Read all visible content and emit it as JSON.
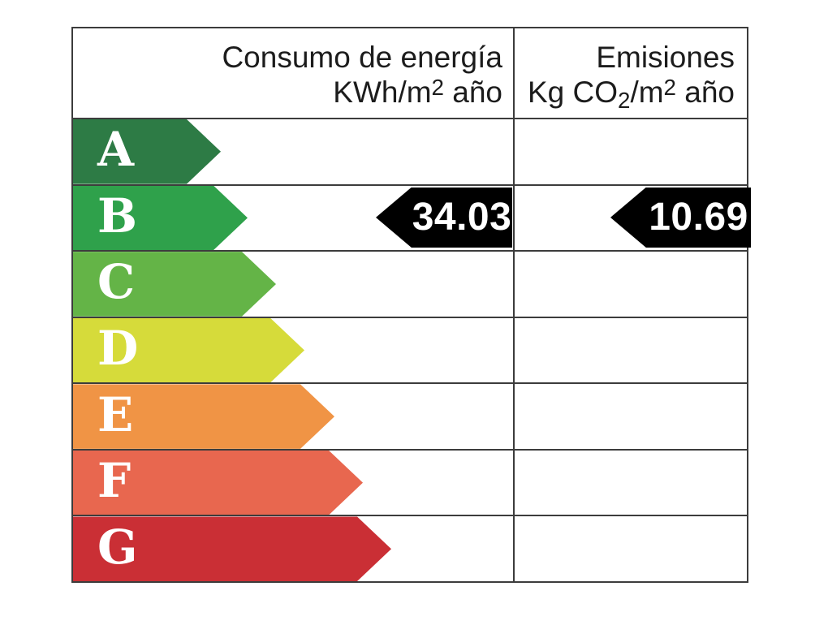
{
  "header": {
    "consumo": {
      "line1": "Consumo de energía",
      "l2a": "KWh/m",
      "l2sup": "2",
      "l2b": " año"
    },
    "emisiones": {
      "line1": "Emisiones",
      "l2a": "Kg CO",
      "l2sub": "2",
      "l2b": "/m",
      "l2sup": "2",
      "l2c": " año"
    }
  },
  "chart_data": {
    "type": "bar",
    "title": "Calificación de eficiencia energética (Spanish energy efficiency certificate scale)",
    "categories": [
      "A",
      "B",
      "C",
      "D",
      "E",
      "F",
      "G"
    ],
    "columns": [
      {
        "header": "Consumo de energía KWh/m2 año"
      },
      {
        "header": "Emisiones Kg CO2/m2 año"
      }
    ],
    "selected_rating": "B",
    "series": [
      {
        "name": "Consumo de energía",
        "unit": "KWh/m2 año",
        "rating": "B",
        "value": 34.03,
        "display": "34.03"
      },
      {
        "name": "Emisiones",
        "unit": "Kg CO2/m2 año",
        "rating": "B",
        "value": 10.69,
        "display": "10.69"
      }
    ],
    "ratings": [
      {
        "letter": "A",
        "color": "#2d7b45"
      },
      {
        "letter": "B",
        "color": "#2fa14b"
      },
      {
        "letter": "C",
        "color": "#64b447"
      },
      {
        "letter": "D",
        "color": "#d6db3a"
      },
      {
        "letter": "E",
        "color": "#f09445"
      },
      {
        "letter": "F",
        "color": "#e8674f"
      },
      {
        "letter": "G",
        "color": "#ca2f35"
      }
    ],
    "indicator_color": "#000000",
    "grid_color": "#3c3c3c",
    "layout": {
      "legend": "none",
      "grid": "table lines",
      "bar_direction": "horizontal, length increasing from A to G"
    }
  }
}
